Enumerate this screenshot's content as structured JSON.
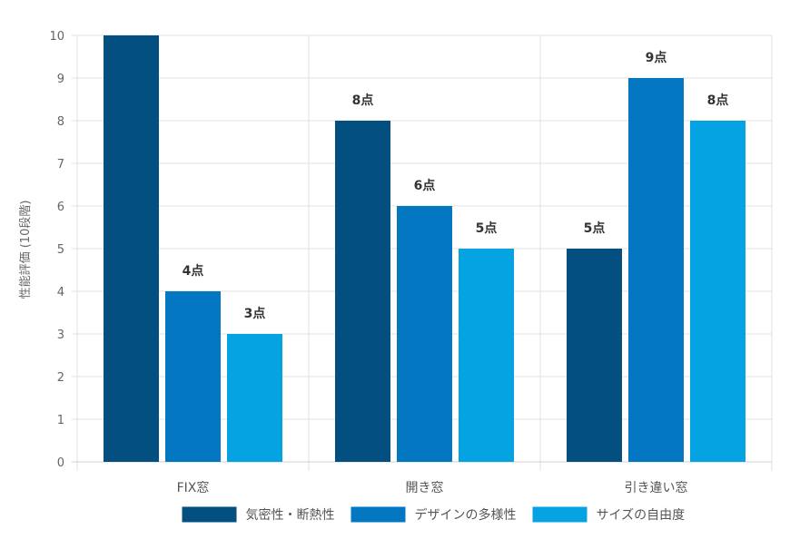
{
  "chart_data": {
    "type": "bar",
    "title": "",
    "xlabel": "",
    "ylabel": "性能評価 (10段階)",
    "ylim": [
      0,
      10
    ],
    "yticks": [
      0,
      1,
      2,
      3,
      4,
      5,
      6,
      7,
      8,
      9,
      10
    ],
    "grid": true,
    "legend_position": "bottom",
    "categories": [
      "FIX窓",
      "開き窓",
      "引き違い窓"
    ],
    "series": [
      {
        "name": "気密性・断熱性",
        "color": "#034f80",
        "values": [
          10,
          8,
          5
        ],
        "labels": [
          "",
          "8点",
          "5点"
        ]
      },
      {
        "name": "デザインの多様性",
        "color": "#0477c2",
        "values": [
          4,
          6,
          9
        ],
        "labels": [
          "4点",
          "6点",
          "9点"
        ]
      },
      {
        "name": "サイズの自由度",
        "color": "#06a3e2",
        "values": [
          3,
          5,
          8
        ],
        "labels": [
          "3点",
          "5点",
          "8点"
        ]
      }
    ]
  }
}
